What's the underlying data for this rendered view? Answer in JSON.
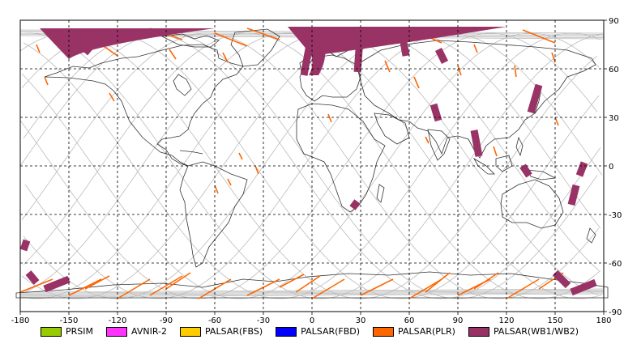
{
  "map": {
    "x_ticks": [
      "-180",
      "-150",
      "-120",
      "-90",
      "-60",
      "-30",
      "0",
      "30",
      "60",
      "90",
      "120",
      "150",
      "180"
    ],
    "y_ticks": [
      "90",
      "60",
      "30",
      "0",
      "-30",
      "-60",
      "-90"
    ]
  },
  "legend": [
    {
      "label": "PRSIM",
      "color": "#99cc00"
    },
    {
      "label": "AVNIR-2",
      "color": "#ff33ff"
    },
    {
      "label": "PALSAR(FBS)",
      "color": "#ffcc00"
    },
    {
      "label": "PALSAR(FBD)",
      "color": "#0000ff"
    },
    {
      "label": "PALSAR(PLR)",
      "color": "#ff6600"
    },
    {
      "label": "PALSAR(WB1/WB2)",
      "color": "#993366"
    }
  ],
  "colors": {
    "wb": "#993366",
    "plr": "#ff6600",
    "orbit": "#bbbbbb",
    "coast": "#333333",
    "grid": "#000000"
  },
  "wb_swaths": [
    {
      "lon_start": -152,
      "lat_start": 83,
      "lon_end": -137,
      "lat_end": 70
    },
    {
      "lon_start": 0,
      "lat_start": 83,
      "lon_end": -5,
      "lat_end": 56
    },
    {
      "lon_start": 30,
      "lat_start": 85,
      "lon_end": 28,
      "lat_end": 58
    },
    {
      "lon_start": 55,
      "lat_start": 85,
      "lon_end": 58,
      "lat_end": 68
    },
    {
      "lon_start": 78,
      "lat_start": 72,
      "lon_end": 82,
      "lat_end": 64
    },
    {
      "lon_start": 75,
      "lat_start": 38,
      "lon_end": 78,
      "lat_end": 28
    },
    {
      "lon_start": 100,
      "lat_start": 22,
      "lon_end": 103,
      "lat_end": 6
    },
    {
      "lon_start": 140,
      "lat_start": 50,
      "lon_end": 135,
      "lat_end": 33
    },
    {
      "lon_start": 130,
      "lat_start": 0,
      "lon_end": 134,
      "lat_end": -6
    },
    {
      "lon_start": 168,
      "lat_start": 2,
      "lon_end": 165,
      "lat_end": -6
    },
    {
      "lon_start": 163,
      "lat_start": -12,
      "lon_end": 160,
      "lat_end": -24
    },
    {
      "lon_start": 28,
      "lat_start": -22,
      "lon_end": 25,
      "lat_end": -26
    },
    {
      "lon_start": -176,
      "lat_start": -46,
      "lon_end": -178,
      "lat_end": -52
    },
    {
      "lon_start": -175,
      "lat_start": -66,
      "lon_end": -170,
      "lat_end": -72
    },
    {
      "lon_start": -150,
      "lat_start": -70,
      "lon_end": -165,
      "lat_end": -76
    },
    {
      "lon_start": 150,
      "lat_start": -66,
      "lon_end": 158,
      "lat_end": -74
    },
    {
      "lon_start": 175,
      "lat_start": -72,
      "lon_end": 160,
      "lat_end": -78
    }
  ]
}
